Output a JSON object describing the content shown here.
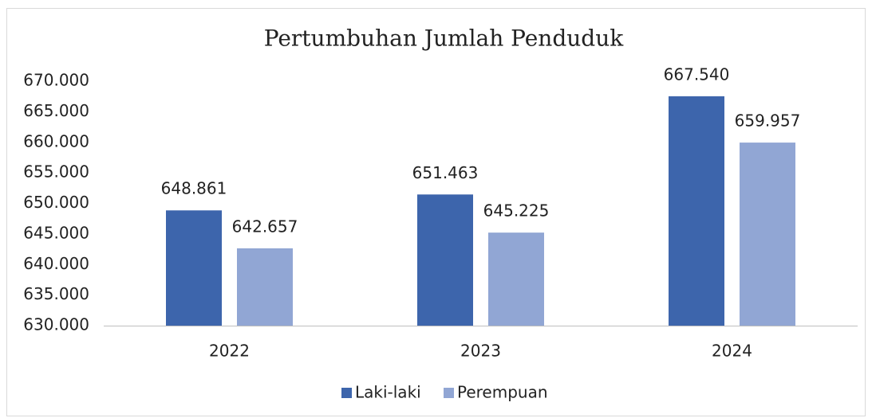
{
  "chart_data": {
    "type": "bar",
    "title": "Pertumbuhan Jumlah Penduduk",
    "categories": [
      "2022",
      "2023",
      "2024"
    ],
    "series": [
      {
        "name": "Laki-laki",
        "color": "#3d65ac",
        "values": [
          648861,
          651463,
          667540
        ],
        "value_labels": [
          "648.861",
          "651.463",
          "667.540"
        ]
      },
      {
        "name": "Perempuan",
        "color": "#91a6d4",
        "values": [
          642657,
          645225,
          659957
        ],
        "value_labels": [
          "642.657",
          "645.225",
          "659.957"
        ]
      }
    ],
    "ylim": [
      630000,
      670000
    ],
    "yticks": [
      {
        "value": 630000,
        "label": "630.000"
      },
      {
        "value": 635000,
        "label": "635.000"
      },
      {
        "value": 640000,
        "label": "640.000"
      },
      {
        "value": 645000,
        "label": "645.000"
      },
      {
        "value": 650000,
        "label": "650.000"
      },
      {
        "value": 655000,
        "label": "655.000"
      },
      {
        "value": 660000,
        "label": "660.000"
      },
      {
        "value": 665000,
        "label": "665.000"
      },
      {
        "value": 670000,
        "label": "670.000"
      }
    ],
    "grid": false,
    "legend": "bottom"
  }
}
